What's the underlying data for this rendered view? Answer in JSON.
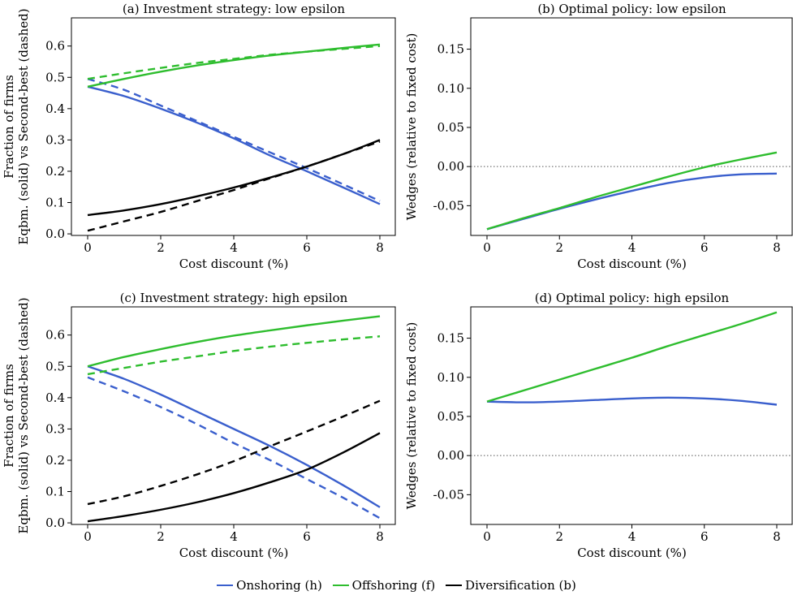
{
  "colors": {
    "onshoring": "#3a5fcd",
    "offshoring": "#2ebd2e",
    "diversification": "#000000"
  },
  "legend": [
    {
      "label": "Onshoring (h)",
      "color": "#3a5fcd"
    },
    {
      "label": "Offshoring (f)",
      "color": "#2ebd2e"
    },
    {
      "label": "Diversification (b)",
      "color": "#000000"
    }
  ],
  "chart_data": [
    {
      "type": "line",
      "title": "(a) Investment strategy: low epsilon",
      "xlabel": "Cost discount (%)",
      "ylabel": [
        "Eqbm. (solid) vs Second-best (dashed)",
        "Fraction of firms"
      ],
      "xlim": [
        0,
        8
      ],
      "ylim": [
        0,
        0.6
      ],
      "xticks": [
        "0",
        "2",
        "4",
        "6",
        "8"
      ],
      "yticks": [
        "0.0",
        "0.1",
        "0.2",
        "0.3",
        "0.4",
        "0.5",
        "0.6"
      ],
      "x": [
        0,
        1,
        2,
        3,
        4,
        5,
        6,
        7,
        8
      ],
      "series": [
        {
          "name": "Onshoring (h)",
          "style": "solid",
          "color": "#3a5fcd",
          "values": [
            0.47,
            0.44,
            0.4,
            0.355,
            0.305,
            0.25,
            0.2,
            0.148,
            0.095
          ]
        },
        {
          "name": "Onshoring (h)",
          "style": "dashed",
          "color": "#3a5fcd",
          "values": [
            0.495,
            0.46,
            0.41,
            0.36,
            0.31,
            0.26,
            0.21,
            0.158,
            0.105
          ]
        },
        {
          "name": "Offshoring (f)",
          "style": "solid",
          "color": "#2ebd2e",
          "values": [
            0.47,
            0.495,
            0.518,
            0.538,
            0.555,
            0.57,
            0.582,
            0.594,
            0.605
          ]
        },
        {
          "name": "Offshoring (f)",
          "style": "dashed",
          "color": "#2ebd2e",
          "values": [
            0.495,
            0.513,
            0.53,
            0.546,
            0.559,
            0.572,
            0.582,
            0.591,
            0.6
          ]
        },
        {
          "name": "Diversification (b)",
          "style": "solid",
          "color": "#000000",
          "values": [
            0.06,
            0.075,
            0.095,
            0.12,
            0.148,
            0.18,
            0.215,
            0.255,
            0.3
          ]
        },
        {
          "name": "Diversification (b)",
          "style": "dashed",
          "color": "#000000",
          "values": [
            0.01,
            0.04,
            0.07,
            0.105,
            0.14,
            0.178,
            0.215,
            0.255,
            0.295
          ]
        }
      ]
    },
    {
      "type": "line",
      "title": "(b) Optimal policy: low epsilon",
      "xlabel": "Cost discount (%)",
      "ylabel": [
        "Wedges (relative to fixed cost)"
      ],
      "xlim": [
        0,
        8
      ],
      "ylim": [
        -0.085,
        0.185
      ],
      "xticks": [
        "0",
        "2",
        "4",
        "6",
        "8"
      ],
      "yticks": [
        "-0.05",
        "0.00",
        "0.05",
        "0.10",
        "0.15"
      ],
      "hline": 0,
      "x": [
        0,
        1,
        2,
        3,
        4,
        5,
        6,
        7,
        8
      ],
      "series": [
        {
          "name": "Onshoring (h)",
          "style": "solid",
          "color": "#3a5fcd",
          "values": [
            -0.08,
            -0.067,
            -0.054,
            -0.042,
            -0.031,
            -0.021,
            -0.014,
            -0.01,
            -0.009
          ]
        },
        {
          "name": "Offshoring (f)",
          "style": "solid",
          "color": "#2ebd2e",
          "values": [
            -0.08,
            -0.066,
            -0.053,
            -0.039,
            -0.026,
            -0.013,
            -0.001,
            0.009,
            0.018
          ]
        }
      ]
    },
    {
      "type": "line",
      "title": "(c) Investment strategy: high epsilon",
      "xlabel": "Cost discount (%)",
      "ylabel": [
        "Eqbm. (solid) vs Second-best (dashed)",
        "Fraction of firms"
      ],
      "xlim": [
        0,
        8
      ],
      "ylim": [
        0,
        0.6
      ],
      "xticks": [
        "0",
        "2",
        "4",
        "6",
        "8"
      ],
      "yticks": [
        "0.0",
        "0.1",
        "0.2",
        "0.3",
        "0.4",
        "0.5",
        "0.6"
      ],
      "x": [
        0,
        1,
        2,
        3,
        4,
        5,
        6,
        7,
        8
      ],
      "series": [
        {
          "name": "Onshoring (h)",
          "style": "solid",
          "color": "#3a5fcd",
          "values": [
            0.5,
            0.46,
            0.41,
            0.355,
            0.3,
            0.245,
            0.185,
            0.12,
            0.05
          ]
        },
        {
          "name": "Onshoring (h)",
          "style": "dashed",
          "color": "#3a5fcd",
          "values": [
            0.465,
            0.42,
            0.37,
            0.315,
            0.255,
            0.2,
            0.14,
            0.08,
            0.015
          ]
        },
        {
          "name": "Offshoring (f)",
          "style": "solid",
          "color": "#2ebd2e",
          "values": [
            0.5,
            0.53,
            0.555,
            0.578,
            0.598,
            0.615,
            0.631,
            0.646,
            0.66
          ]
        },
        {
          "name": "Offshoring (f)",
          "style": "dashed",
          "color": "#2ebd2e",
          "values": [
            0.475,
            0.495,
            0.515,
            0.532,
            0.549,
            0.563,
            0.575,
            0.586,
            0.596
          ]
        },
        {
          "name": "Diversification (b)",
          "style": "solid",
          "color": "#000000",
          "values": [
            0.005,
            0.022,
            0.042,
            0.066,
            0.095,
            0.13,
            0.17,
            0.225,
            0.287
          ]
        },
        {
          "name": "Diversification (b)",
          "style": "dashed",
          "color": "#000000",
          "values": [
            0.06,
            0.085,
            0.118,
            0.155,
            0.197,
            0.245,
            0.292,
            0.34,
            0.39
          ]
        }
      ]
    },
    {
      "type": "line",
      "title": "(d) Optimal policy: high epsilon",
      "xlabel": "Cost discount (%)",
      "ylabel": [
        "Wedges (relative to fixed cost)"
      ],
      "xlim": [
        0,
        8
      ],
      "ylim": [
        -0.085,
        0.185
      ],
      "xticks": [
        "0",
        "2",
        "4",
        "6",
        "8"
      ],
      "yticks": [
        "-0.05",
        "0.00",
        "0.05",
        "0.10",
        "0.15"
      ],
      "hline": 0,
      "x": [
        0,
        1,
        2,
        3,
        4,
        5,
        6,
        7,
        8
      ],
      "series": [
        {
          "name": "Onshoring (h)",
          "style": "solid",
          "color": "#3a5fcd",
          "values": [
            0.069,
            0.068,
            0.069,
            0.071,
            0.073,
            0.074,
            0.073,
            0.07,
            0.065
          ]
        },
        {
          "name": "Offshoring (f)",
          "style": "solid",
          "color": "#2ebd2e",
          "values": [
            0.069,
            0.083,
            0.097,
            0.111,
            0.125,
            0.14,
            0.154,
            0.168,
            0.183
          ]
        }
      ]
    }
  ]
}
